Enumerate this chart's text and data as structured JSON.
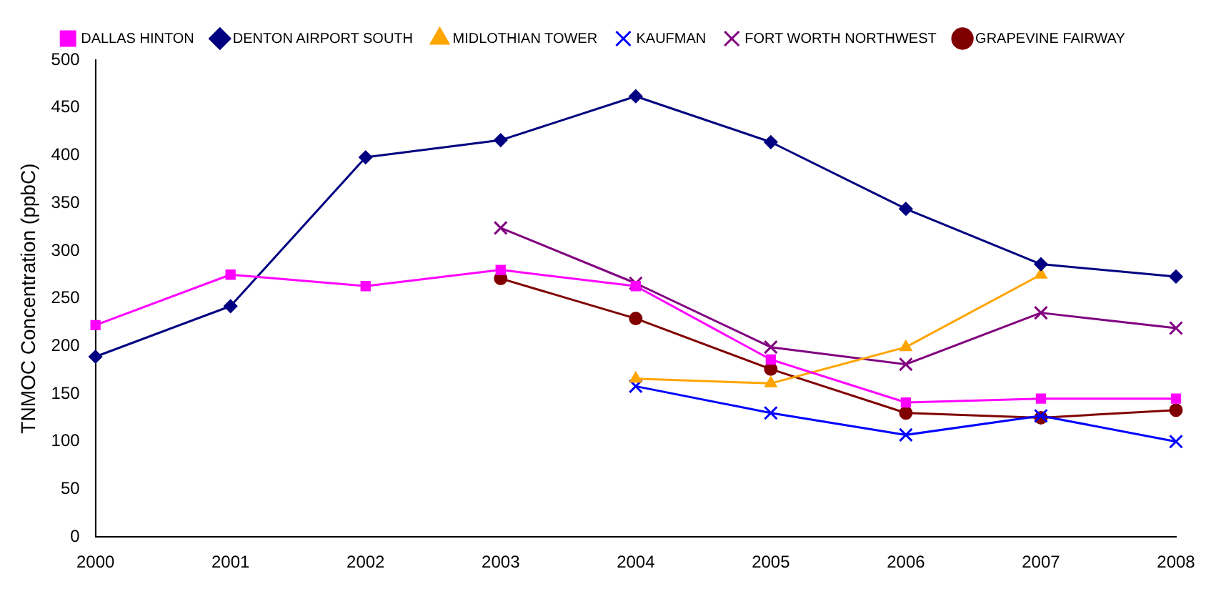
{
  "chart_data": {
    "type": "line",
    "ylabel": "TNMOC Concentration (ppbC)",
    "categories": [
      "2000",
      "2001",
      "2002",
      "2003",
      "2004",
      "2005",
      "2006",
      "2007",
      "2008"
    ],
    "ylim": [
      0,
      500
    ],
    "yticks": [
      0,
      50,
      100,
      150,
      200,
      250,
      300,
      350,
      400,
      450,
      500
    ],
    "grid": false,
    "legend": "top",
    "series": [
      {
        "name": "DALLAS HINTON",
        "color": "#ff00ff",
        "marker": "square",
        "values": [
          222,
          275,
          263,
          280,
          263,
          186,
          141,
          145,
          145
        ]
      },
      {
        "name": "DENTON AIRPORT SOUTH",
        "color": "#000080",
        "marker": "diamond",
        "values": [
          189,
          242,
          398,
          416,
          462,
          414,
          344,
          286,
          273
        ]
      },
      {
        "name": "MIDLOTHIAN TOWER",
        "color": "#ffa500",
        "marker": "triangle",
        "values": [
          null,
          null,
          null,
          null,
          166,
          161,
          199,
          275,
          null
        ]
      },
      {
        "name": "KAUFMAN",
        "color": "#0000ff",
        "marker": "cross",
        "values": [
          null,
          null,
          null,
          null,
          158,
          130,
          107,
          127,
          100
        ]
      },
      {
        "name": "FORT WORTH NORTHWEST",
        "color": "#800080",
        "marker": "cross",
        "values": [
          null,
          null,
          null,
          324,
          266,
          199,
          181,
          235,
          219
        ]
      },
      {
        "name": "GRAPEVINE FAIRWAY",
        "color": "#800000",
        "marker": "circle",
        "values": [
          null,
          null,
          null,
          271,
          229,
          176,
          130,
          125,
          133
        ]
      }
    ]
  }
}
